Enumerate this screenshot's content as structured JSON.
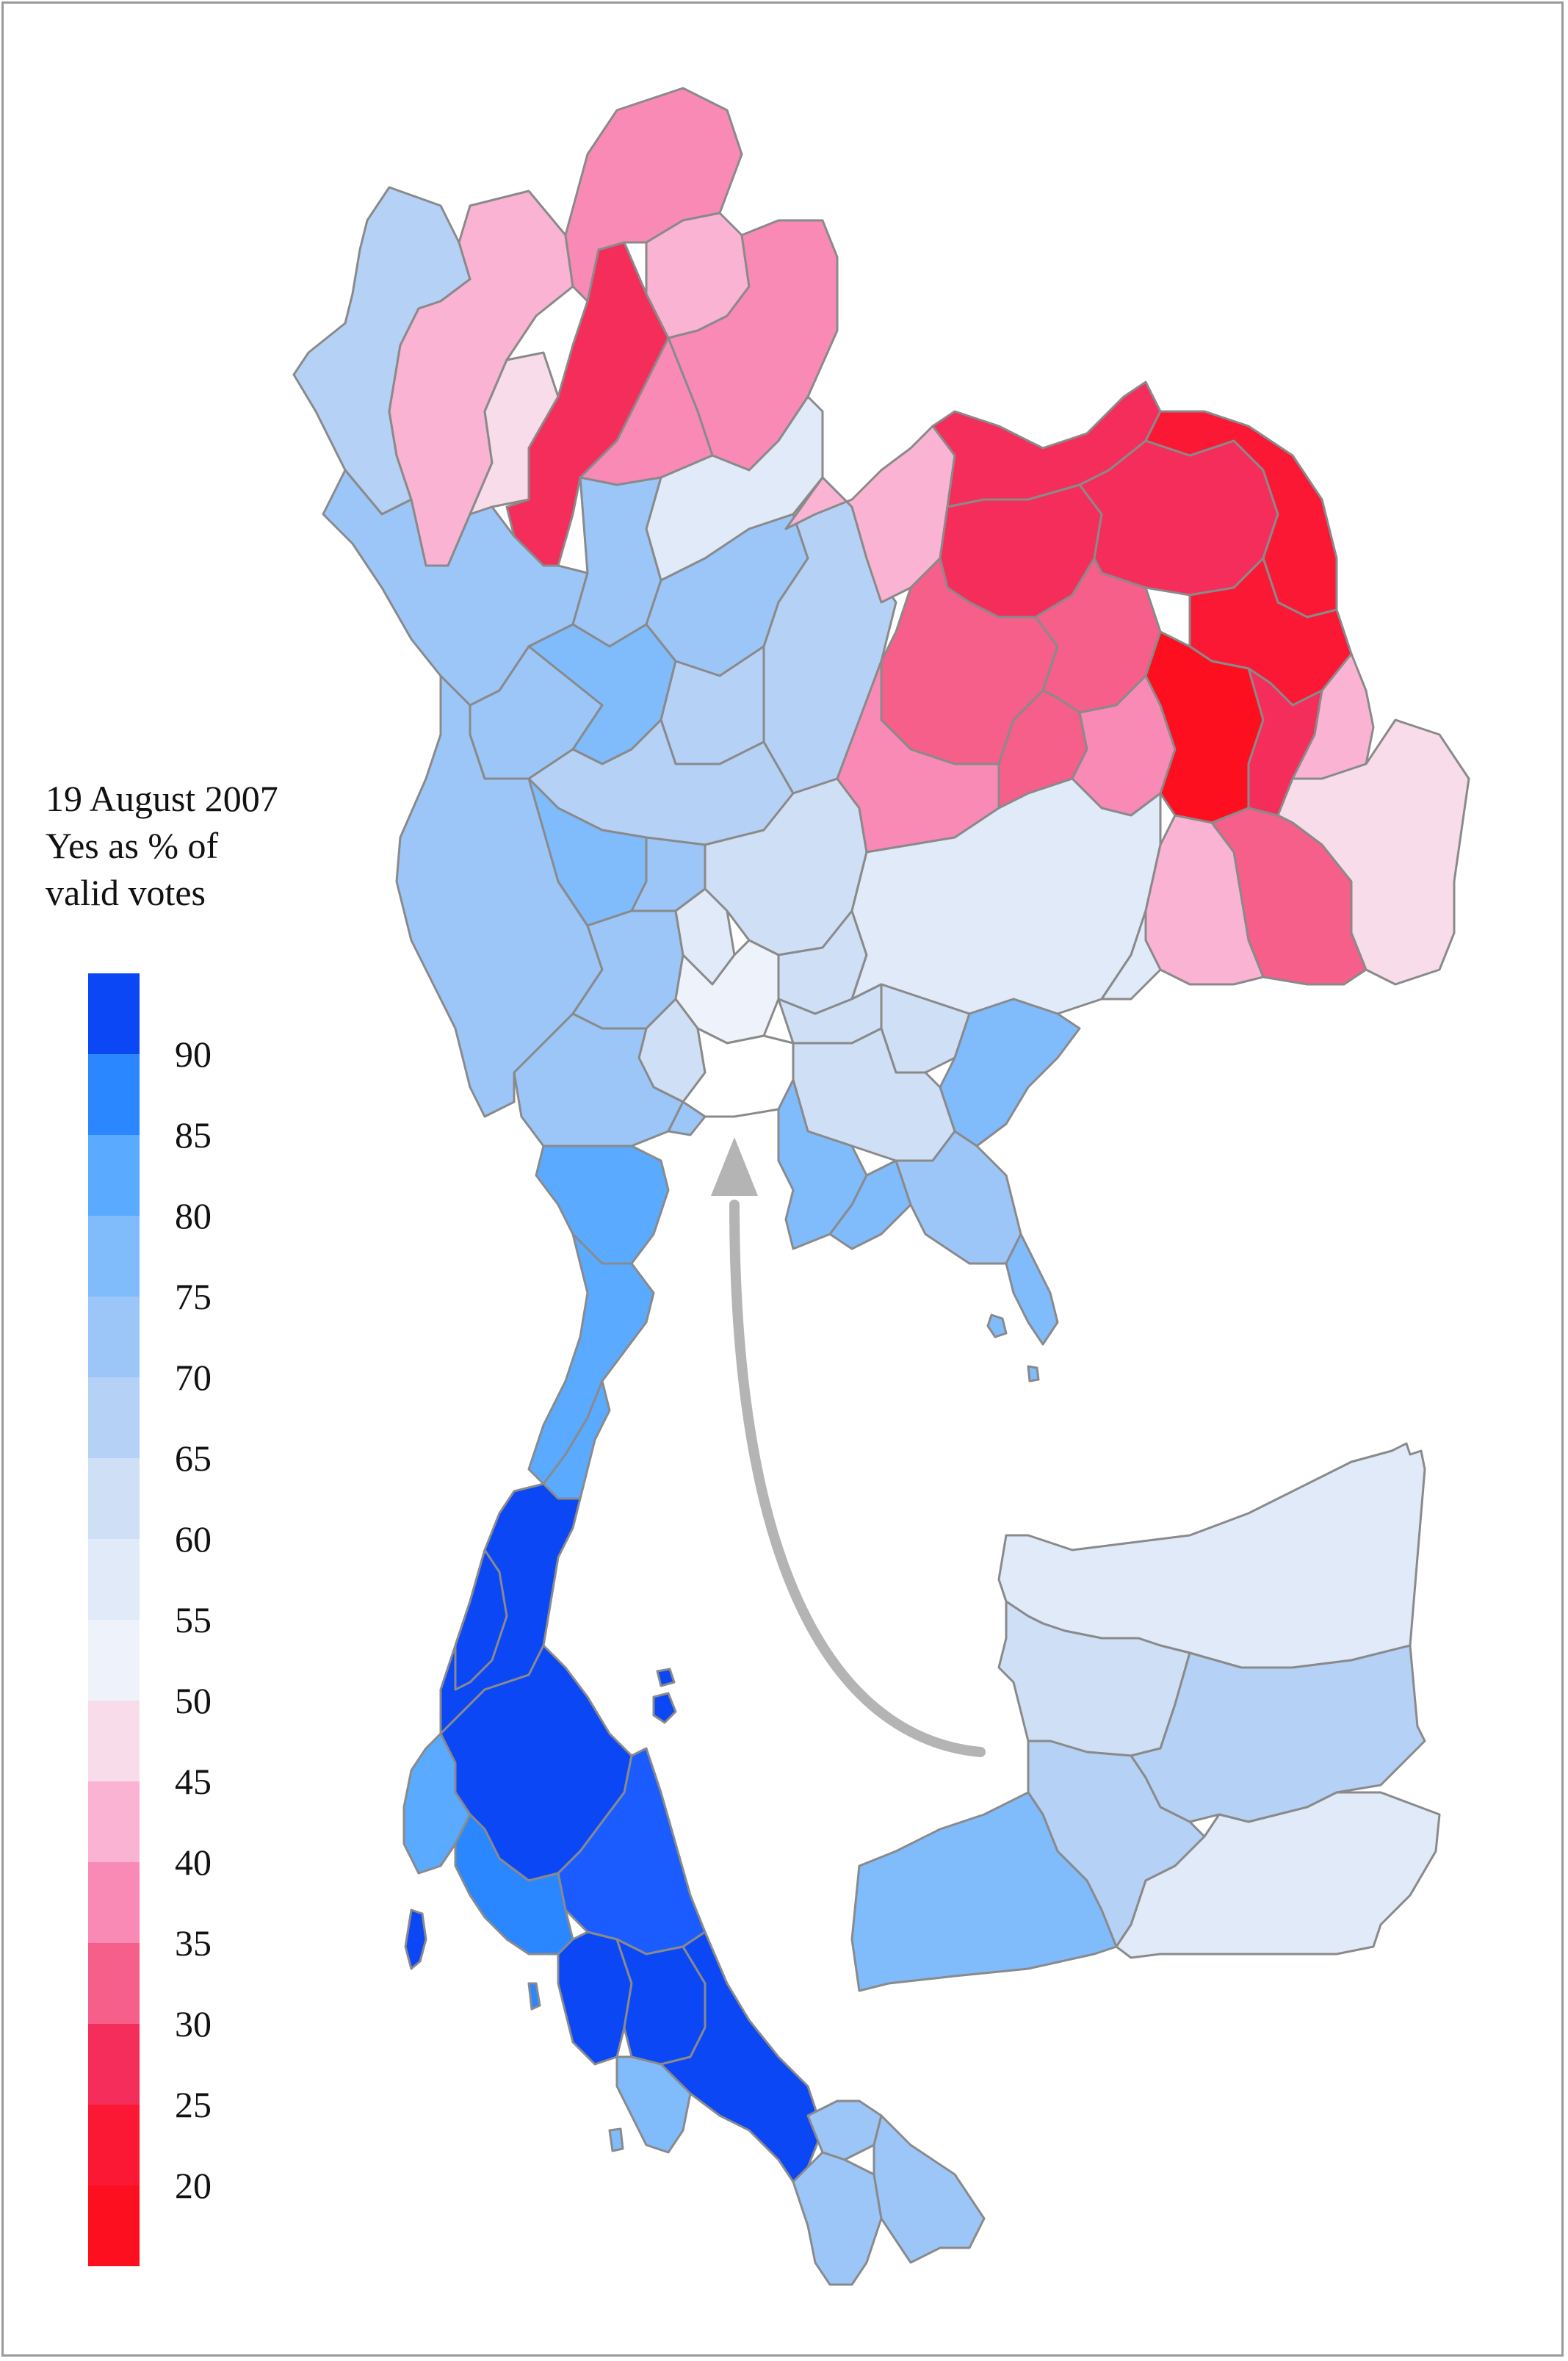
{
  "title": {
    "line1": "19 August 2007",
    "line2": "Yes as % of",
    "line3": "valid votes"
  },
  "legend": {
    "bins": [
      {
        "color": "#0b47f5"
      },
      {
        "color": "#2a87ff"
      },
      {
        "color": "#5aaaff"
      },
      {
        "color": "#80bbfb"
      },
      {
        "color": "#9cc6f8"
      },
      {
        "color": "#b6d1f6"
      },
      {
        "color": "#cfdff6"
      },
      {
        "color": "#e0eaf9"
      },
      {
        "color": "#eef3fb"
      },
      {
        "color": "#f9dcea"
      },
      {
        "color": "#fbb3d3"
      },
      {
        "color": "#f98ab6"
      },
      {
        "color": "#f55f8a"
      },
      {
        "color": "#f52d5a"
      },
      {
        "color": "#fa1834"
      },
      {
        "color": "#fe0f1f"
      }
    ],
    "ticks": [
      "90",
      "85",
      "80",
      "75",
      "70",
      "65",
      "60",
      "55",
      "50",
      "45",
      "40",
      "35",
      "30",
      "25",
      "20"
    ]
  },
  "map": {
    "border_color": "#8a8a8a",
    "arrow_color": "#b4b4b4",
    "background": "#ffffff"
  }
}
